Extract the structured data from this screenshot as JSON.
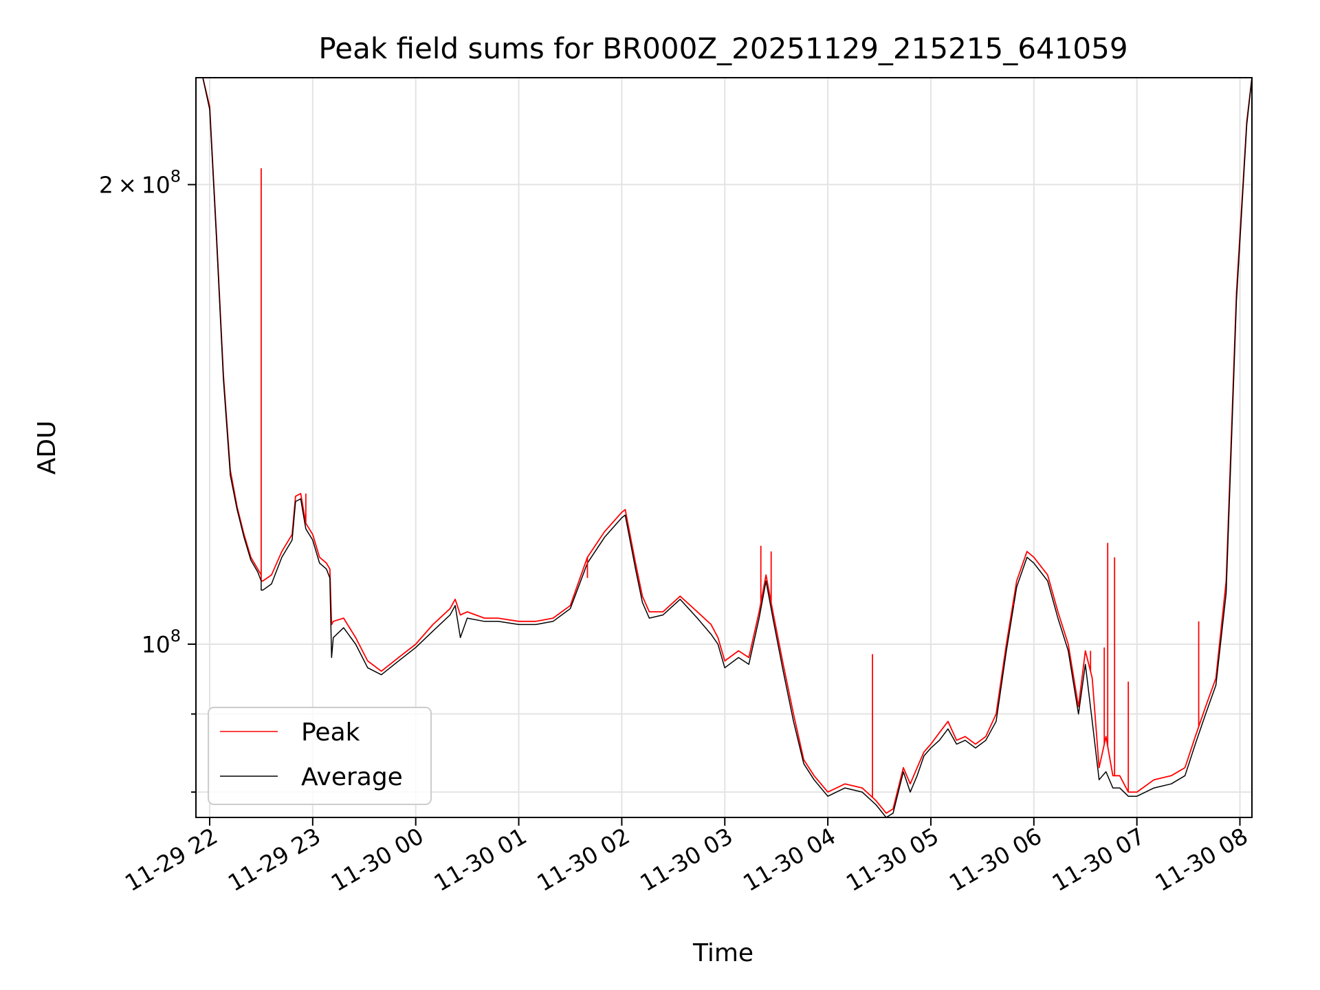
{
  "chart_data": {
    "type": "line",
    "title": "Peak field sums for BR000Z_20251129_215215_641059",
    "xlabel": "Time",
    "ylabel": "ADU",
    "yscale": "log",
    "grid": true,
    "legend_position": "lower-left",
    "xlim": [
      "2025-11-29 21:52",
      "2025-11-30 08:07"
    ],
    "ylim": [
      77000000,
      235000000
    ],
    "x_ticks": [
      {
        "value": "2025-11-29 22:00",
        "label": "11-29 22"
      },
      {
        "value": "2025-11-29 23:00",
        "label": "11-29 23"
      },
      {
        "value": "2025-11-30 00:00",
        "label": "11-30 00"
      },
      {
        "value": "2025-11-30 01:00",
        "label": "11-30 01"
      },
      {
        "value": "2025-11-30 02:00",
        "label": "11-30 02"
      },
      {
        "value": "2025-11-30 03:00",
        "label": "11-30 03"
      },
      {
        "value": "2025-11-30 04:00",
        "label": "11-30 04"
      },
      {
        "value": "2025-11-30 05:00",
        "label": "11-30 05"
      },
      {
        "value": "2025-11-30 06:00",
        "label": "11-30 06"
      },
      {
        "value": "2025-11-30 07:00",
        "label": "11-30 07"
      },
      {
        "value": "2025-11-30 08:00",
        "label": "11-30 08"
      }
    ],
    "y_ticks_major": [
      {
        "value": 100000000,
        "base": "10",
        "exp": "8",
        "coef": ""
      },
      {
        "value": 200000000,
        "base": "10",
        "exp": "8",
        "coef": "2 × 10"
      }
    ],
    "y_ticks_minor": [
      80000000,
      90000000,
      300000000
    ],
    "series": [
      {
        "name": "Peak",
        "color": "#ff0000",
        "x": [
          "2025-11-29 21:52",
          "2025-11-29 21:56",
          "2025-11-29 22:00",
          "2025-11-29 22:04",
          "2025-11-29 22:08",
          "2025-11-29 22:12",
          "2025-11-29 22:16",
          "2025-11-29 22:20",
          "2025-11-29 22:24",
          "2025-11-29 22:28",
          "2025-11-29 22:30",
          "2025-11-29 22:30",
          "2025-11-29 22:31",
          "2025-11-29 22:36",
          "2025-11-29 22:42",
          "2025-11-29 22:48",
          "2025-11-29 22:50",
          "2025-11-29 22:53",
          "2025-11-29 22:56",
          "2025-11-29 23:00",
          "2025-11-29 23:04",
          "2025-11-29 23:08",
          "2025-11-29 23:10",
          "2025-11-29 23:11",
          "2025-11-29 23:12",
          "2025-11-29 23:18",
          "2025-11-29 23:25",
          "2025-11-29 23:32",
          "2025-11-29 23:40",
          "2025-11-29 23:50",
          "2025-11-30 00:00",
          "2025-11-30 00:10",
          "2025-11-30 00:20",
          "2025-11-30 00:23",
          "2025-11-30 00:26",
          "2025-11-30 00:30",
          "2025-11-30 00:40",
          "2025-11-30 00:48",
          "2025-11-30 01:00",
          "2025-11-30 01:10",
          "2025-11-30 01:20",
          "2025-11-30 01:30",
          "2025-11-30 01:40",
          "2025-11-30 01:50",
          "2025-11-30 02:00",
          "2025-11-30 02:02",
          "2025-11-30 02:08",
          "2025-11-30 02:12",
          "2025-11-30 02:16",
          "2025-11-30 02:24",
          "2025-11-30 02:34",
          "2025-11-30 02:44",
          "2025-11-30 02:52",
          "2025-11-30 02:56",
          "2025-11-30 03:00",
          "2025-11-30 03:08",
          "2025-11-30 03:14",
          "2025-11-30 03:20",
          "2025-11-30 03:24",
          "2025-11-30 03:28",
          "2025-11-30 03:34",
          "2025-11-30 03:40",
          "2025-11-30 03:46",
          "2025-11-30 03:52",
          "2025-11-30 04:00",
          "2025-11-30 04:10",
          "2025-11-30 04:20",
          "2025-11-30 04:28",
          "2025-11-30 04:34",
          "2025-11-30 04:38",
          "2025-11-30 04:44",
          "2025-11-30 04:48",
          "2025-11-30 04:52",
          "2025-11-30 04:56",
          "2025-11-30 05:00",
          "2025-11-30 05:05",
          "2025-11-30 05:10",
          "2025-11-30 05:15",
          "2025-11-30 05:20",
          "2025-11-30 05:26",
          "2025-11-30 05:32",
          "2025-11-30 05:38",
          "2025-11-30 05:44",
          "2025-11-30 05:50",
          "2025-11-30 05:56",
          "2025-11-30 06:00",
          "2025-11-30 06:08",
          "2025-11-30 06:14",
          "2025-11-30 06:20",
          "2025-11-30 06:26",
          "2025-11-30 06:30",
          "2025-11-30 06:34",
          "2025-11-30 06:38",
          "2025-11-30 06:42",
          "2025-11-30 06:46",
          "2025-11-30 06:50",
          "2025-11-30 06:55",
          "2025-11-30 07:00",
          "2025-11-30 07:10",
          "2025-11-30 07:20",
          "2025-11-30 07:28",
          "2025-11-30 07:34",
          "2025-11-30 07:40",
          "2025-11-30 07:46",
          "2025-11-30 07:52",
          "2025-11-30 07:58",
          "2025-11-30 08:04",
          "2025-11-30 08:07"
        ],
        "y": [
          235000000,
          235000000,
          225000000,
          185000000,
          150000000,
          130000000,
          123000000,
          118000000,
          114000000,
          112000000,
          111000000,
          110000000,
          110000000,
          111000000,
          115000000,
          118000000,
          125000000,
          125500000,
          120000000,
          118000000,
          114000000,
          113000000,
          112000000,
          103000000,
          103500000,
          104000000,
          101000000,
          97500000,
          96000000,
          98000000,
          100000000,
          103000000,
          105500000,
          107000000,
          104500000,
          105000000,
          104000000,
          104000000,
          103500000,
          103500000,
          104000000,
          106000000,
          114000000,
          118500000,
          122000000,
          122500000,
          113000000,
          107500000,
          105000000,
          105000000,
          107500000,
          105000000,
          103000000,
          101000000,
          97500000,
          99000000,
          98000000,
          105000000,
          111000000,
          105000000,
          97000000,
          90000000,
          84000000,
          82000000,
          80000000,
          81000000,
          80500000,
          79000000,
          77500000,
          78000000,
          83000000,
          81000000,
          83000000,
          85000000,
          86000000,
          87500000,
          89000000,
          86500000,
          87000000,
          86000000,
          87000000,
          90000000,
          100000000,
          110000000,
          115000000,
          114000000,
          111000000,
          105000000,
          100000000,
          91000000,
          99000000,
          95000000,
          83000000,
          87000000,
          82000000,
          82000000,
          80000000,
          80000000,
          81500000,
          82000000,
          83000000,
          87000000,
          91000000,
          95000000,
          110000000,
          170000000,
          220000000,
          235000000
        ]
      },
      {
        "name": "Average",
        "color": "#000000",
        "x": [
          "2025-11-29 21:52",
          "2025-11-29 21:56",
          "2025-11-29 22:00",
          "2025-11-29 22:04",
          "2025-11-29 22:08",
          "2025-11-29 22:12",
          "2025-11-29 22:16",
          "2025-11-29 22:20",
          "2025-11-29 22:24",
          "2025-11-29 22:28",
          "2025-11-29 22:30",
          "2025-11-29 22:30",
          "2025-11-29 22:31",
          "2025-11-29 22:36",
          "2025-11-29 22:42",
          "2025-11-29 22:48",
          "2025-11-29 22:50",
          "2025-11-29 22:53",
          "2025-11-29 22:56",
          "2025-11-29 23:00",
          "2025-11-29 23:04",
          "2025-11-29 23:08",
          "2025-11-29 23:10",
          "2025-11-29 23:11",
          "2025-11-29 23:12",
          "2025-11-29 23:18",
          "2025-11-29 23:25",
          "2025-11-29 23:32",
          "2025-11-29 23:40",
          "2025-11-29 23:50",
          "2025-11-30 00:00",
          "2025-11-30 00:10",
          "2025-11-30 00:20",
          "2025-11-30 00:23",
          "2025-11-30 00:26",
          "2025-11-30 00:30",
          "2025-11-30 00:40",
          "2025-11-30 00:48",
          "2025-11-30 01:00",
          "2025-11-30 01:10",
          "2025-11-30 01:20",
          "2025-11-30 01:30",
          "2025-11-30 01:40",
          "2025-11-30 01:50",
          "2025-11-30 02:00",
          "2025-11-30 02:02",
          "2025-11-30 02:08",
          "2025-11-30 02:12",
          "2025-11-30 02:16",
          "2025-11-30 02:24",
          "2025-11-30 02:34",
          "2025-11-30 02:44",
          "2025-11-30 02:52",
          "2025-11-30 02:56",
          "2025-11-30 03:00",
          "2025-11-30 03:08",
          "2025-11-30 03:14",
          "2025-11-30 03:20",
          "2025-11-30 03:24",
          "2025-11-30 03:28",
          "2025-11-30 03:34",
          "2025-11-30 03:40",
          "2025-11-30 03:46",
          "2025-11-30 03:52",
          "2025-11-30 04:00",
          "2025-11-30 04:10",
          "2025-11-30 04:20",
          "2025-11-30 04:28",
          "2025-11-30 04:34",
          "2025-11-30 04:38",
          "2025-11-30 04:44",
          "2025-11-30 04:48",
          "2025-11-30 04:52",
          "2025-11-30 04:56",
          "2025-11-30 05:00",
          "2025-11-30 05:05",
          "2025-11-30 05:10",
          "2025-11-30 05:15",
          "2025-11-30 05:20",
          "2025-11-30 05:26",
          "2025-11-30 05:32",
          "2025-11-30 05:38",
          "2025-11-30 05:44",
          "2025-11-30 05:50",
          "2025-11-30 05:56",
          "2025-11-30 06:00",
          "2025-11-30 06:08",
          "2025-11-30 06:14",
          "2025-11-30 06:20",
          "2025-11-30 06:26",
          "2025-11-30 06:30",
          "2025-11-30 06:34",
          "2025-11-30 06:38",
          "2025-11-30 06:42",
          "2025-11-30 06:46",
          "2025-11-30 06:50",
          "2025-11-30 06:55",
          "2025-11-30 07:00",
          "2025-11-30 07:10",
          "2025-11-30 07:20",
          "2025-11-30 07:28",
          "2025-11-30 07:34",
          "2025-11-30 07:40",
          "2025-11-30 07:46",
          "2025-11-30 07:52",
          "2025-11-30 07:58",
          "2025-11-30 08:04",
          "2025-11-30 08:07"
        ],
        "y": [
          235000000,
          235000000,
          224000000,
          184000000,
          149000000,
          129000000,
          122500000,
          117500000,
          113500000,
          111500000,
          110000000,
          108500000,
          108500000,
          109500000,
          114000000,
          117000000,
          124000000,
          124500000,
          119000000,
          117000000,
          113000000,
          112000000,
          110500000,
          98000000,
          101000000,
          102500000,
          100000000,
          96500000,
          95500000,
          97500000,
          99500000,
          102000000,
          104500000,
          106000000,
          101000000,
          104000000,
          103500000,
          103500000,
          103000000,
          103000000,
          103500000,
          105500000,
          113000000,
          117500000,
          121000000,
          121500000,
          112000000,
          106500000,
          104000000,
          104500000,
          107000000,
          104000000,
          101500000,
          100000000,
          96500000,
          98000000,
          97000000,
          104000000,
          110000000,
          104000000,
          96000000,
          89000000,
          83500000,
          81500000,
          79500000,
          80500000,
          80000000,
          78500000,
          77000000,
          77500000,
          82500000,
          80000000,
          82000000,
          84500000,
          85500000,
          86500000,
          88000000,
          86000000,
          86500000,
          85500000,
          86500000,
          89000000,
          99000000,
          109000000,
          114000000,
          113000000,
          110000000,
          104000000,
          99000000,
          90000000,
          97000000,
          89000000,
          81500000,
          82500000,
          80500000,
          80500000,
          79500000,
          79500000,
          80500000,
          81000000,
          82000000,
          86000000,
          90000000,
          94000000,
          108000000,
          168000000,
          219000000,
          235000000
        ]
      }
    ],
    "spikes": [
      {
        "x": "2025-11-29 22:30",
        "y": 205000000
      },
      {
        "x": "2025-11-29 22:56",
        "y": 125500000
      },
      {
        "x": "2025-11-30 01:40",
        "y": 110500000
      },
      {
        "x": "2025-11-30 03:21",
        "y": 116000000
      },
      {
        "x": "2025-11-30 03:27",
        "y": 115000000
      },
      {
        "x": "2025-11-30 04:26",
        "y": 98500000
      },
      {
        "x": "2025-11-30 05:48",
        "y": 106000000
      },
      {
        "x": "2025-11-30 06:33",
        "y": 99000000
      },
      {
        "x": "2025-11-30 06:41",
        "y": 99500000
      },
      {
        "x": "2025-11-30 06:43",
        "y": 116500000
      },
      {
        "x": "2025-11-30 06:47",
        "y": 114000000
      },
      {
        "x": "2025-11-30 06:55",
        "y": 94500000
      },
      {
        "x": "2025-11-30 07:36",
        "y": 103500000
      }
    ]
  }
}
